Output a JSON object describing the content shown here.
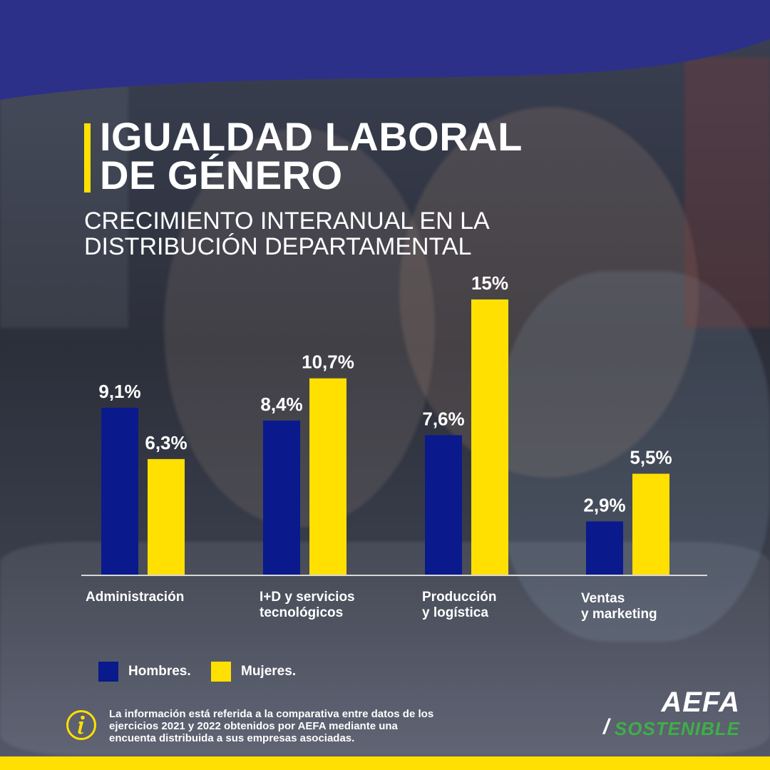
{
  "header": {
    "title_lines": [
      "IGUALDAD LABORAL",
      "DE GÉNERO"
    ],
    "subtitle_lines": [
      "CRECIMIENTO INTERANUAL EN LA",
      "DISTRIBUCIÓN  DEPARTAMENTAL"
    ]
  },
  "colors": {
    "navy": "#2d3088",
    "yellow": "#ffe000",
    "hombres_bar": "#0a1a8c",
    "mujeres_bar": "#ffe000",
    "logo_green": "#3fae49"
  },
  "chart_data": {
    "type": "bar",
    "categories": [
      [
        "Administración"
      ],
      [
        "I+D y servicios",
        "tecnológicos"
      ],
      [
        "Producción",
        "y logística"
      ],
      [
        "Ventas",
        "y marketing"
      ]
    ],
    "series": [
      {
        "name": "Hombres.",
        "color": "#0a1a8c",
        "values": [
          9.1,
          8.4,
          7.6,
          2.9
        ],
        "labels": [
          "9,1%",
          "8,4%",
          "7,6%",
          "2,9%"
        ]
      },
      {
        "name": "Mujeres.",
        "color": "#ffe000",
        "values": [
          6.3,
          10.7,
          15,
          5.5
        ],
        "labels": [
          "6,3%",
          "10,7%",
          "15%",
          "5,5%"
        ]
      }
    ],
    "ylim": [
      0,
      15
    ],
    "grid": false,
    "legend_position": "bottom-left"
  },
  "legend": {
    "hombres": "Hombres.",
    "mujeres": "Mujeres."
  },
  "footer": {
    "info_icon": "info-icon",
    "info_lines": [
      "La información está referida a la comparativa entre datos de los",
      "ejercicios 2021 y 2022 obtenidos por AEFA mediante una",
      "encuenta distribuida a sus empresas asociadas."
    ],
    "logo_top": "AEFA",
    "logo_slash": "/",
    "logo_bottom": "SOSTENIBLE"
  }
}
